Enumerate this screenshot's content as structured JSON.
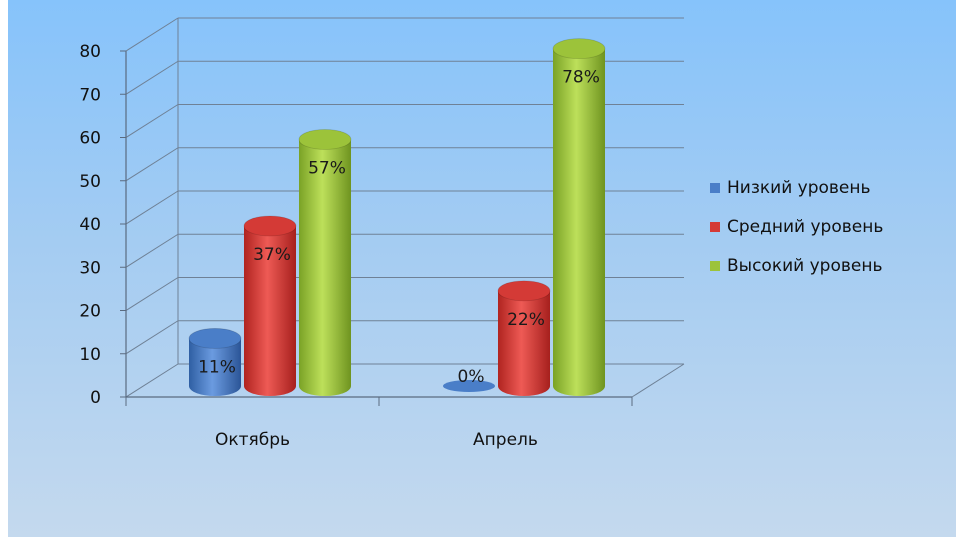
{
  "chart_data": {
    "type": "bar",
    "title": "",
    "xlabel": "",
    "ylabel": "",
    "categories": [
      "Октябрь",
      "Апрель"
    ],
    "ylim": [
      0,
      80
    ],
    "yticks": [
      "0",
      "10",
      "20",
      "30",
      "40",
      "50",
      "60",
      "70",
      "80"
    ],
    "grid": true,
    "legend_position": "right",
    "series": [
      {
        "name": "Низкий уровень",
        "values": [
          11,
          0
        ],
        "labels": [
          "11%",
          "0%"
        ],
        "color": "#4a7ec8"
      },
      {
        "name": "Средний уровень",
        "values": [
          37,
          22
        ],
        "labels": [
          "37%",
          "22%"
        ],
        "color": "#d43a36"
      },
      {
        "name": "Высокий уровень",
        "values": [
          57,
          78
        ],
        "labels": [
          "57%",
          "78%"
        ],
        "color": "#9cc33a"
      }
    ]
  }
}
